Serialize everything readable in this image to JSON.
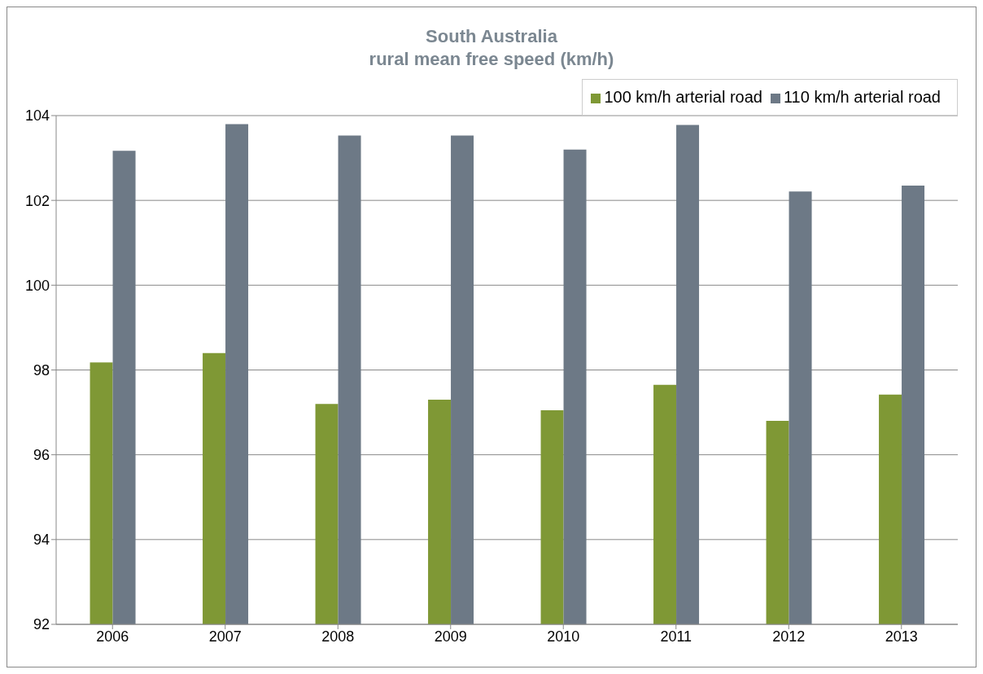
{
  "chart_data": {
    "type": "bar",
    "title": "South Australia\nrural mean free speed (km/h)",
    "categories": [
      "2006",
      "2007",
      "2008",
      "2009",
      "2010",
      "2011",
      "2012",
      "2013"
    ],
    "series": [
      {
        "name": "100 km/h arterial road",
        "color": "#7f9835",
        "values": [
          98.18,
          98.4,
          97.2,
          97.3,
          97.05,
          97.65,
          96.8,
          97.42
        ]
      },
      {
        "name": "110 km/h arterial road",
        "color": "#6d7986",
        "values": [
          103.17,
          103.8,
          103.53,
          103.53,
          103.2,
          103.78,
          102.21,
          102.35
        ]
      }
    ],
    "ylim": [
      92,
      104
    ],
    "yticks": [
      92,
      94,
      96,
      98,
      100,
      102,
      104
    ],
    "grid": "y",
    "legend": "top right"
  }
}
